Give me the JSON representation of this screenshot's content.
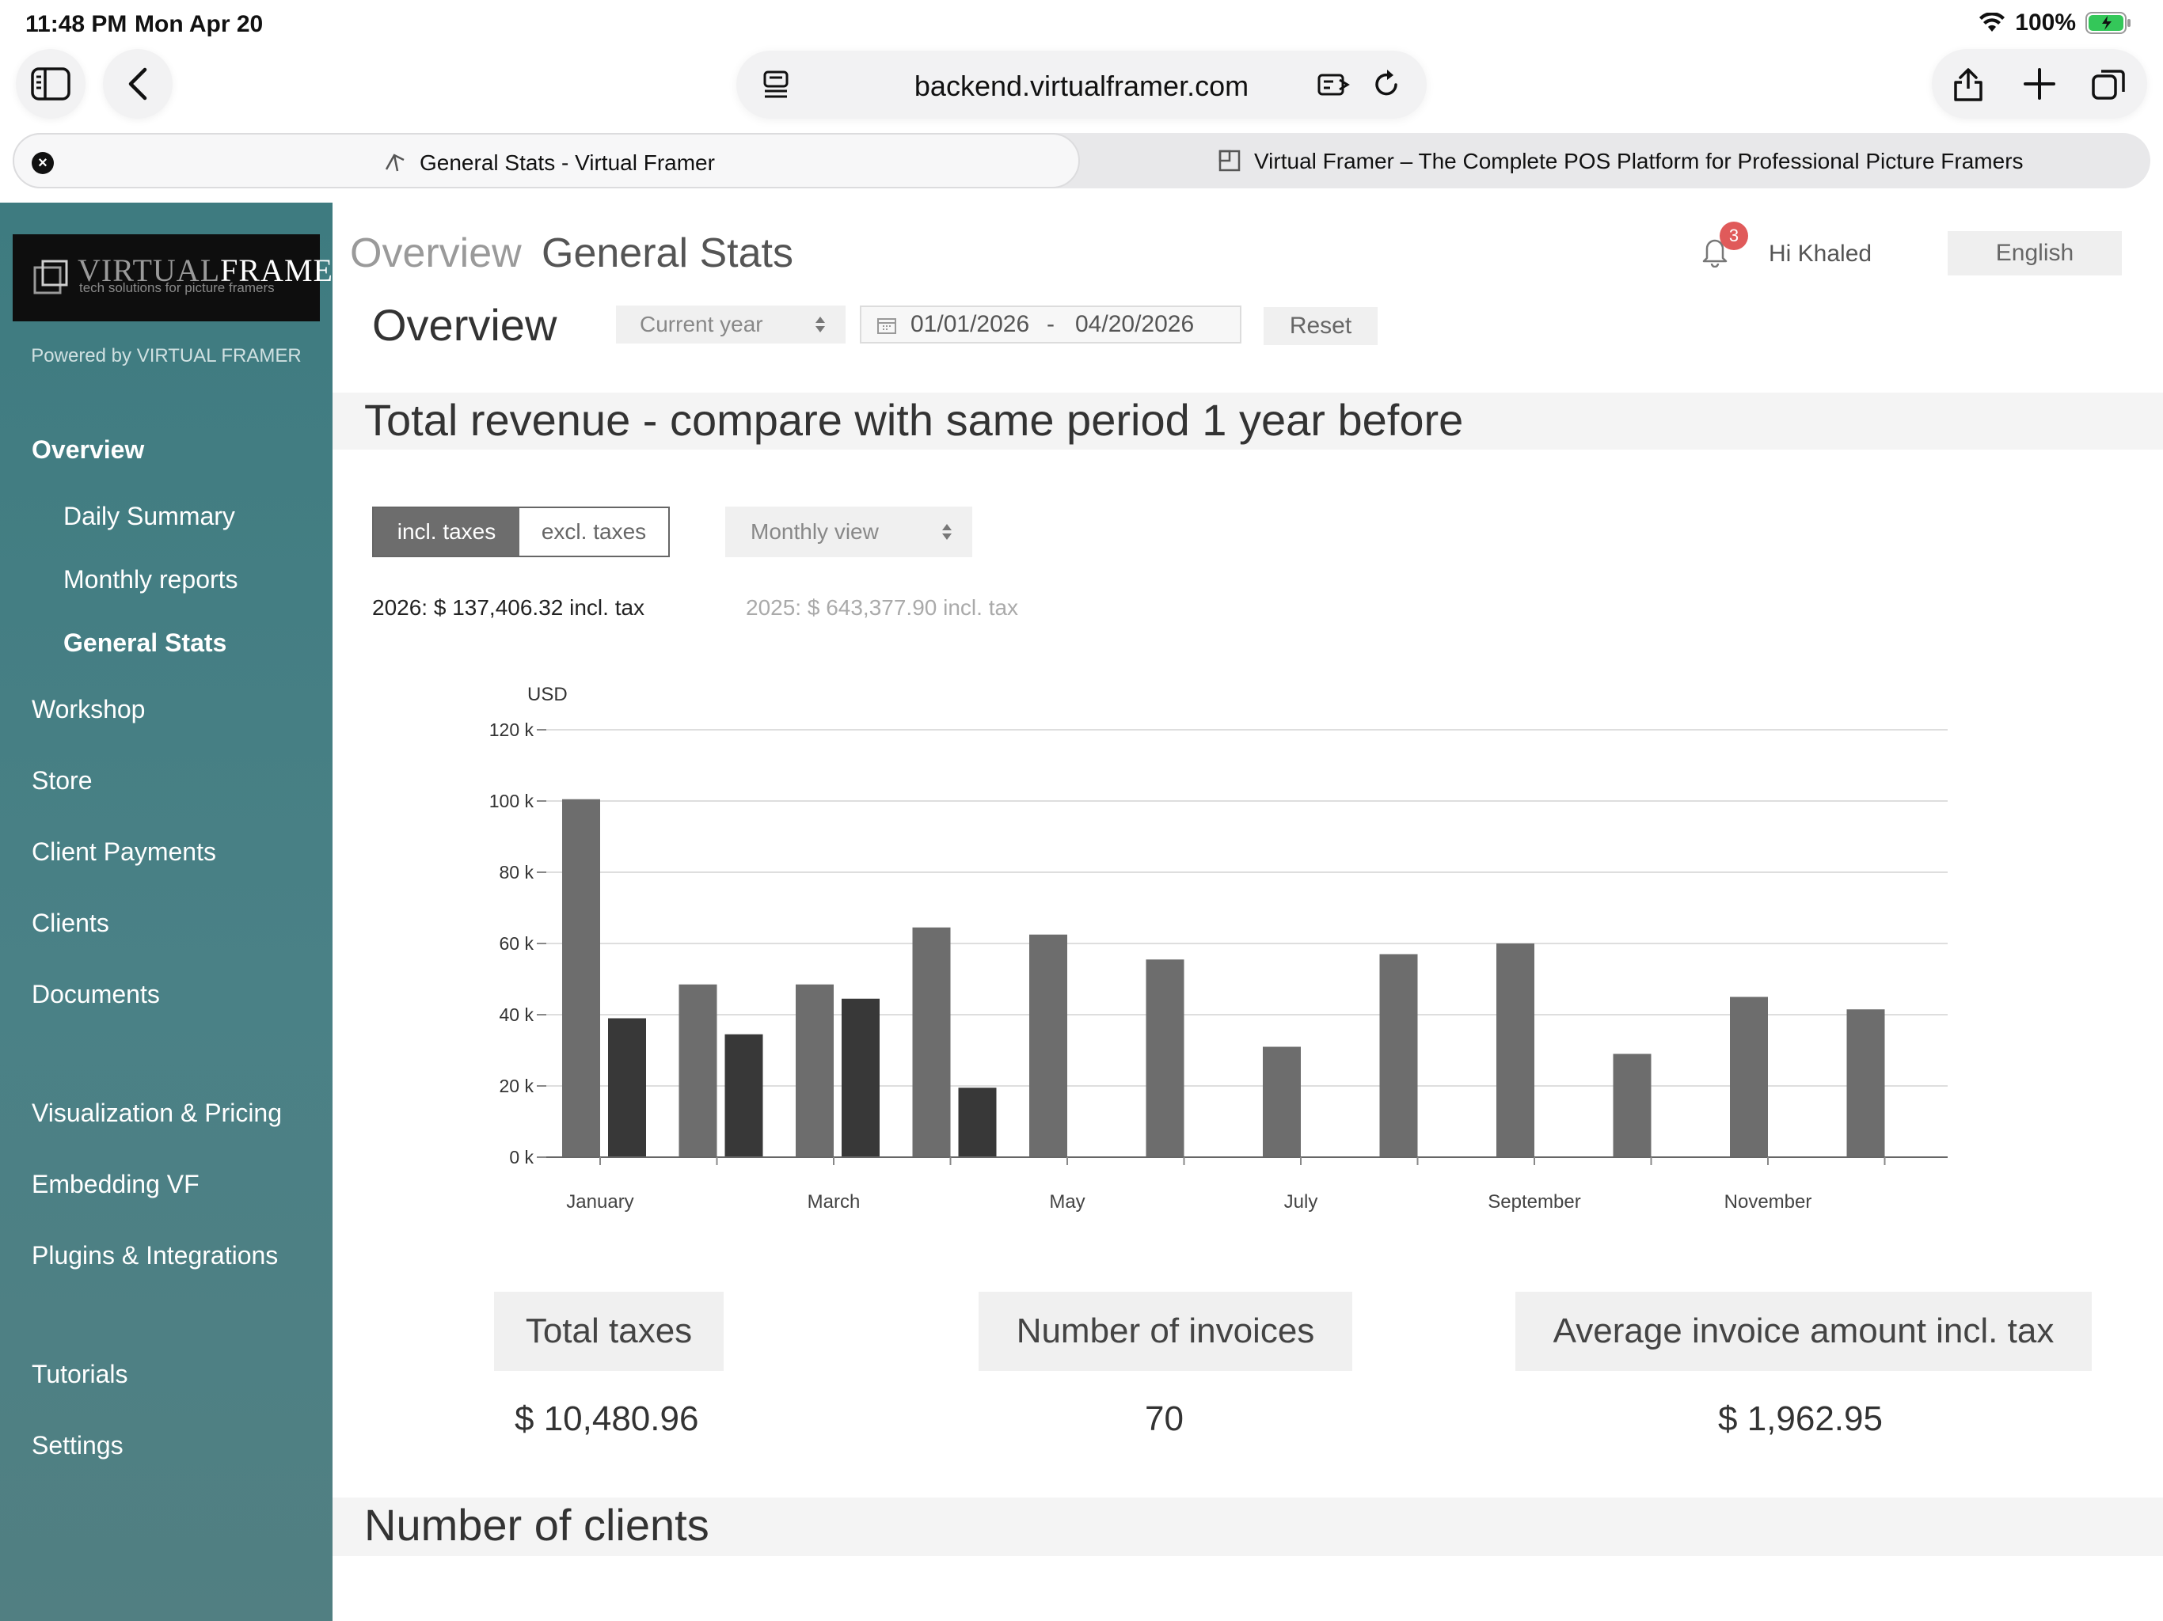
{
  "status_bar": {
    "time": "11:48 PM",
    "date": "Mon Apr 20",
    "battery": "100%"
  },
  "browser": {
    "url": "backend.virtualframer.com",
    "tabs": [
      {
        "label": "General Stats - Virtual Framer",
        "active": true
      },
      {
        "label": "Virtual Framer – The Complete POS Platform for Professional Picture Framers",
        "active": false
      }
    ]
  },
  "sidebar": {
    "logo_word_1": "VIRTUAL",
    "logo_word_2": "FRAMER",
    "logo_tagline": "tech solutions for picture framers",
    "powered_by": "Powered by VIRTUAL FRAMER",
    "items": [
      {
        "label": "Overview",
        "bold": true,
        "sub": false
      },
      {
        "label": "Daily Summary",
        "bold": false,
        "sub": true
      },
      {
        "label": "Monthly reports",
        "bold": false,
        "sub": true
      },
      {
        "label": "General Stats",
        "bold": true,
        "sub": true
      },
      {
        "label": "Workshop",
        "bold": false,
        "sub": false
      },
      {
        "label": "Store",
        "bold": false,
        "sub": false
      },
      {
        "label": "Client Payments",
        "bold": false,
        "sub": false
      },
      {
        "label": "Clients",
        "bold": false,
        "sub": false
      },
      {
        "label": "Documents",
        "bold": false,
        "sub": false
      },
      {
        "label": "Visualization & Pricing",
        "bold": false,
        "sub": false
      },
      {
        "label": "Embedding VF",
        "bold": false,
        "sub": false
      },
      {
        "label": "Plugins & Integrations",
        "bold": false,
        "sub": false
      },
      {
        "label": "Tutorials",
        "bold": false,
        "sub": false
      },
      {
        "label": "Settings",
        "bold": false,
        "sub": false
      }
    ]
  },
  "header": {
    "breadcrumb_1": "Overview",
    "breadcrumb_2": "General Stats",
    "notifications_count": "3",
    "greeting": "Hi Khaled",
    "language": "English"
  },
  "filters": {
    "title": "Overview",
    "period": "Current year",
    "date_start": "01/01/2026",
    "date_separator": "-",
    "date_end": "04/20/2026",
    "reset_label": "Reset"
  },
  "revenue": {
    "section_title": "Total revenue - compare with same period 1 year before",
    "toggle_on": "incl. taxes",
    "toggle_off": "excl. taxes",
    "view": "Monthly view",
    "total_current": "2026: $ 137,406.32 incl. tax",
    "total_previous": "2025: $ 643,377.90 incl. tax"
  },
  "chart_data": {
    "type": "bar",
    "ylabel": "USD",
    "ylim": [
      0,
      120000
    ],
    "yticks": [
      "0 k",
      "20 k",
      "40 k",
      "60 k",
      "80 k",
      "100 k",
      "120 k"
    ],
    "categories": [
      "January",
      "February",
      "March",
      "April",
      "May",
      "June",
      "July",
      "August",
      "September",
      "October",
      "November",
      "December"
    ],
    "xtick_labels": [
      "January",
      "",
      "March",
      "",
      "May",
      "",
      "July",
      "",
      "September",
      "",
      "November",
      ""
    ],
    "grid": true,
    "series": [
      {
        "values": [
          100500,
          48500,
          48500,
          64500,
          62500,
          55500,
          31000,
          57000,
          60000,
          29000,
          45000,
          41500
        ],
        "color": "#6d6d6d"
      },
      {
        "values": [
          39000,
          34500,
          44500,
          19500,
          0,
          0,
          0,
          0,
          0,
          0,
          0,
          0
        ],
        "color": "#383838"
      }
    ]
  },
  "metrics": [
    {
      "label": "Total taxes",
      "value": "$ 10,480.96"
    },
    {
      "label": "Number of invoices",
      "value": "70"
    },
    {
      "label": "Average invoice amount incl. tax",
      "value": "$ 1,962.95"
    }
  ],
  "clients": {
    "section_title": "Number of clients"
  }
}
